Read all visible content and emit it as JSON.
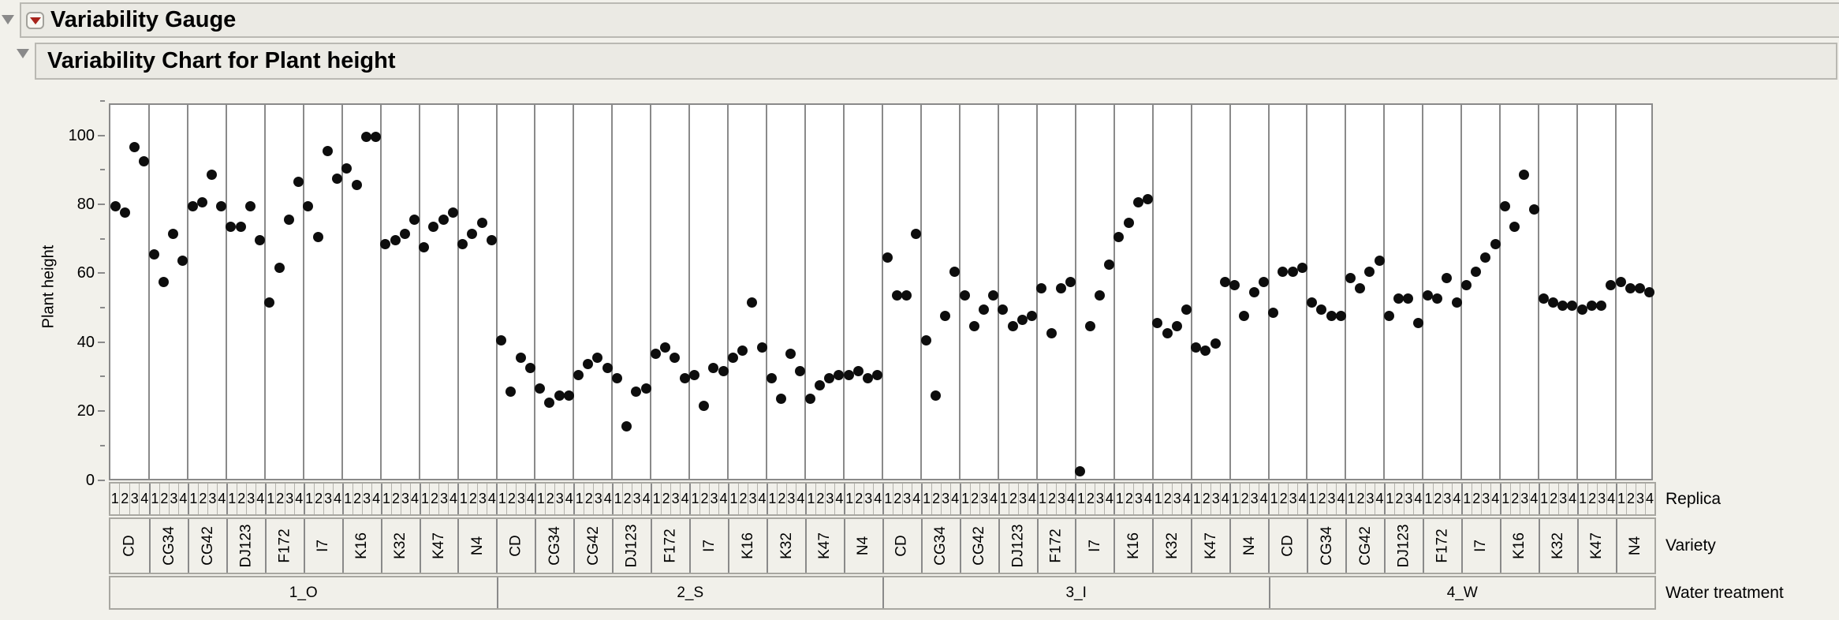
{
  "report": {
    "title": "Variability Gauge",
    "subtitle": "Variability Chart for Plant height"
  },
  "row_labels": {
    "replica": "Replica",
    "variety": "Variety",
    "water": "Water treatment"
  },
  "icons": {
    "outline_disclosure": "collapse-triangle",
    "red_triangle_menu": "red-triangle-menu"
  },
  "colors": {
    "page_bg": "#F2F1EB",
    "titlebar_bg": "#EBEAE4",
    "titlebar_border": "#BAB9B3",
    "plot_bg": "#FFFFFF",
    "grid_line": "#8A8A8A",
    "band_border": "#A8A7A1",
    "dot": "#0D0D0D",
    "red_menu_triangle": "#A8241C",
    "disclosure_gray": "#8A8A8A"
  },
  "chart_data": {
    "type": "scatter",
    "title": "Variability Chart for Plant height",
    "ylabel": "Plant height",
    "ylim": [
      0,
      110
    ],
    "yticks": [
      0,
      20,
      40,
      60,
      80,
      100
    ],
    "minor_yticks": [
      10,
      30,
      50,
      70,
      90,
      110
    ],
    "x_hierarchy": [
      "Replica",
      "Variety",
      "Water treatment"
    ],
    "replicas": [
      "1",
      "2",
      "3",
      "4"
    ],
    "varieties": [
      "CD",
      "CG34",
      "CG42",
      "DJ123",
      "F172",
      "I7",
      "K16",
      "K32",
      "K47",
      "N4"
    ],
    "water_treatments": [
      "1_O",
      "2_S",
      "3_I",
      "4_W"
    ],
    "values": {
      "1_O": {
        "CD": [
          80,
          78,
          97,
          93
        ],
        "CG34": [
          66,
          58,
          72,
          64
        ],
        "CG42": [
          80,
          81,
          89,
          80
        ],
        "DJ123": [
          74,
          74,
          80,
          70
        ],
        "F172": [
          52,
          62,
          76,
          87
        ],
        "I7": [
          80,
          71,
          96,
          88
        ],
        "K16": [
          91,
          86,
          100,
          100
        ],
        "K32": [
          69,
          70,
          72,
          76
        ],
        "K47": [
          68,
          74,
          76,
          78
        ],
        "N4": [
          69,
          72,
          75,
          70
        ]
      },
      "2_S": {
        "CD": [
          41,
          26,
          36,
          33
        ],
        "CG34": [
          27,
          23,
          25,
          25
        ],
        "CG42": [
          31,
          34,
          36,
          33
        ],
        "DJ123": [
          30,
          16,
          26,
          27
        ],
        "F172": [
          37,
          39,
          36,
          30
        ],
        "I7": [
          31,
          22,
          33,
          32
        ],
        "K16": [
          36,
          38,
          52,
          39
        ],
        "K32": [
          30,
          24,
          37,
          32
        ],
        "K47": [
          24,
          28,
          30,
          31
        ],
        "N4": [
          31,
          32,
          30,
          31
        ]
      },
      "3_I": {
        "CD": [
          65,
          54,
          54,
          72
        ],
        "CG34": [
          41,
          25,
          48,
          61
        ],
        "CG42": [
          54,
          45,
          50,
          54
        ],
        "DJ123": [
          50,
          45,
          47,
          48
        ],
        "F172": [
          56,
          43,
          56,
          58
        ],
        "I7": [
          3,
          45,
          54,
          63
        ],
        "K16": [
          71,
          75,
          81,
          82
        ],
        "K32": [
          46,
          43,
          45,
          50
        ],
        "K47": [
          39,
          38,
          40,
          58
        ],
        "N4": [
          57,
          48,
          55,
          58
        ]
      },
      "4_W": {
        "CD": [
          49,
          61,
          61,
          62
        ],
        "CG34": [
          52,
          50,
          48,
          48
        ],
        "CG42": [
          59,
          56,
          61,
          64
        ],
        "DJ123": [
          48,
          53,
          53,
          46
        ],
        "F172": [
          54,
          53,
          59,
          52
        ],
        "I7": [
          57,
          61,
          65,
          69
        ],
        "K16": [
          80,
          74,
          89,
          79
        ],
        "K32": [
          53,
          52,
          51,
          51
        ],
        "K47": [
          50,
          51,
          51,
          57
        ],
        "N4": [
          58,
          56,
          56,
          55
        ]
      }
    }
  }
}
